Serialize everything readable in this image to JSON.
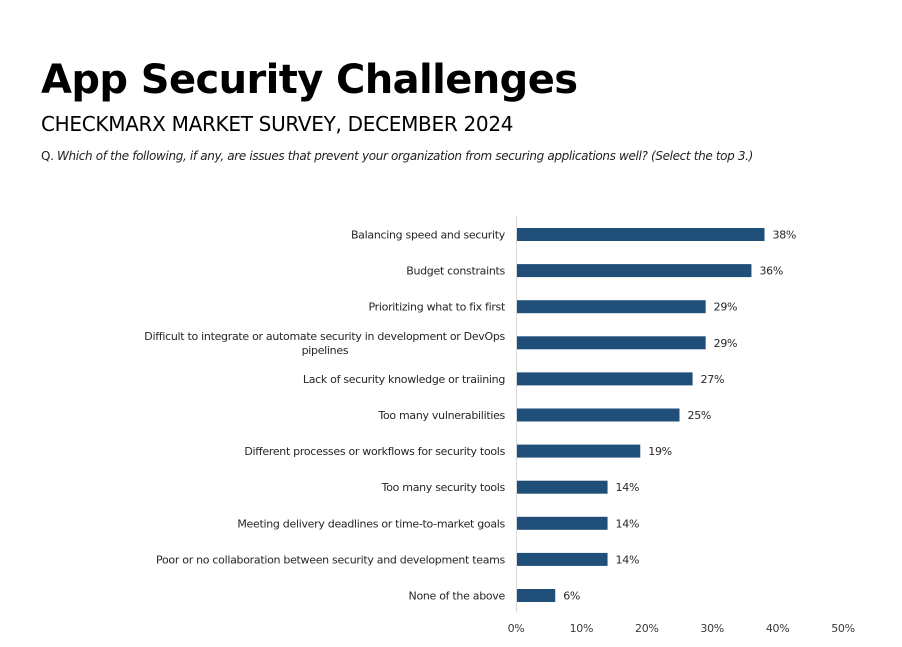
{
  "header": {
    "title": "App Security Challenges",
    "subtitle": "CHECKMARX MARKET SURVEY, DECEMBER 2024",
    "question_prefix": "Q.",
    "question_text": "Which of the following, if any, are issues that prevent your organization from securing applications well? (Select the top 3.)"
  },
  "chart_data": {
    "type": "bar",
    "orientation": "horizontal",
    "categories": [
      [
        "Balancing speed and security"
      ],
      [
        "Budget constraints"
      ],
      [
        "Prioritizing what to fix first"
      ],
      [
        "Difficult to integrate or automate security in development or DevOps",
        "pipelines"
      ],
      [
        "Lack of security knowledge or traiining"
      ],
      [
        "Too many vulnerabilities"
      ],
      [
        "Different processes or workflows for security tools"
      ],
      [
        "Too many security tools"
      ],
      [
        "Meeting delivery deadlines or time-to-market goals"
      ],
      [
        "Poor or no collaboration between security and development teams"
      ],
      [
        "None of the above"
      ]
    ],
    "values": [
      38,
      36,
      29,
      29,
      27,
      25,
      19,
      14,
      14,
      14,
      6
    ],
    "value_labels": [
      "38%",
      "36%",
      "29%",
      "29%",
      "27%",
      "25%",
      "19%",
      "14%",
      "14%",
      "14%",
      "6%"
    ],
    "xlim": [
      0,
      50
    ],
    "xticks": [
      0,
      10,
      20,
      30,
      40,
      50
    ],
    "xtick_labels": [
      "0%",
      "10%",
      "20%",
      "30%",
      "40%",
      "50%"
    ],
    "bar_color": "#1f4e79",
    "axis_color": "#d9d9d9",
    "grid": false,
    "legend": "none"
  }
}
